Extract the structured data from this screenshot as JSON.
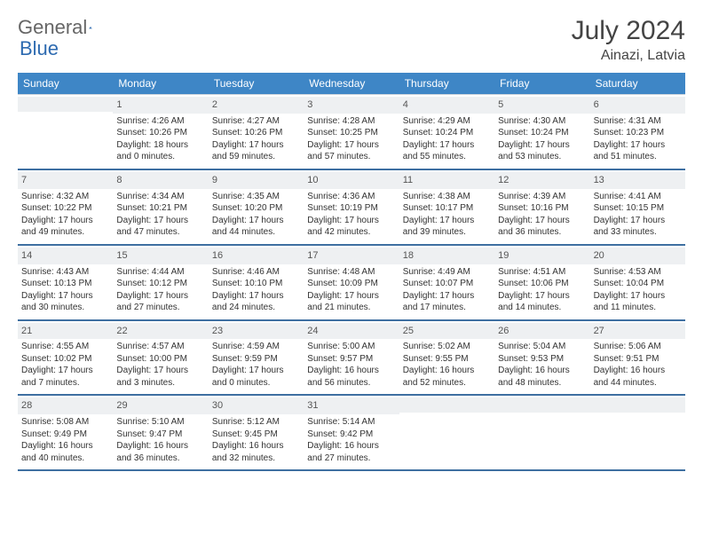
{
  "logo": {
    "text1": "General",
    "text2": "Blue"
  },
  "title": "July 2024",
  "location": "Ainazi, Latvia",
  "colors": {
    "header_bg": "#3e86c6",
    "header_text": "#ffffff",
    "week_border": "#3e6fa1",
    "daynum_bg": "#eef0f2",
    "logo_blue": "#2d6ab0"
  },
  "day_names": [
    "Sunday",
    "Monday",
    "Tuesday",
    "Wednesday",
    "Thursday",
    "Friday",
    "Saturday"
  ],
  "weeks": [
    [
      {
        "num": "",
        "sunrise": "",
        "sunset": "",
        "daylight": ""
      },
      {
        "num": "1",
        "sunrise": "Sunrise: 4:26 AM",
        "sunset": "Sunset: 10:26 PM",
        "daylight": "Daylight: 18 hours and 0 minutes."
      },
      {
        "num": "2",
        "sunrise": "Sunrise: 4:27 AM",
        "sunset": "Sunset: 10:26 PM",
        "daylight": "Daylight: 17 hours and 59 minutes."
      },
      {
        "num": "3",
        "sunrise": "Sunrise: 4:28 AM",
        "sunset": "Sunset: 10:25 PM",
        "daylight": "Daylight: 17 hours and 57 minutes."
      },
      {
        "num": "4",
        "sunrise": "Sunrise: 4:29 AM",
        "sunset": "Sunset: 10:24 PM",
        "daylight": "Daylight: 17 hours and 55 minutes."
      },
      {
        "num": "5",
        "sunrise": "Sunrise: 4:30 AM",
        "sunset": "Sunset: 10:24 PM",
        "daylight": "Daylight: 17 hours and 53 minutes."
      },
      {
        "num": "6",
        "sunrise": "Sunrise: 4:31 AM",
        "sunset": "Sunset: 10:23 PM",
        "daylight": "Daylight: 17 hours and 51 minutes."
      }
    ],
    [
      {
        "num": "7",
        "sunrise": "Sunrise: 4:32 AM",
        "sunset": "Sunset: 10:22 PM",
        "daylight": "Daylight: 17 hours and 49 minutes."
      },
      {
        "num": "8",
        "sunrise": "Sunrise: 4:34 AM",
        "sunset": "Sunset: 10:21 PM",
        "daylight": "Daylight: 17 hours and 47 minutes."
      },
      {
        "num": "9",
        "sunrise": "Sunrise: 4:35 AM",
        "sunset": "Sunset: 10:20 PM",
        "daylight": "Daylight: 17 hours and 44 minutes."
      },
      {
        "num": "10",
        "sunrise": "Sunrise: 4:36 AM",
        "sunset": "Sunset: 10:19 PM",
        "daylight": "Daylight: 17 hours and 42 minutes."
      },
      {
        "num": "11",
        "sunrise": "Sunrise: 4:38 AM",
        "sunset": "Sunset: 10:17 PM",
        "daylight": "Daylight: 17 hours and 39 minutes."
      },
      {
        "num": "12",
        "sunrise": "Sunrise: 4:39 AM",
        "sunset": "Sunset: 10:16 PM",
        "daylight": "Daylight: 17 hours and 36 minutes."
      },
      {
        "num": "13",
        "sunrise": "Sunrise: 4:41 AM",
        "sunset": "Sunset: 10:15 PM",
        "daylight": "Daylight: 17 hours and 33 minutes."
      }
    ],
    [
      {
        "num": "14",
        "sunrise": "Sunrise: 4:43 AM",
        "sunset": "Sunset: 10:13 PM",
        "daylight": "Daylight: 17 hours and 30 minutes."
      },
      {
        "num": "15",
        "sunrise": "Sunrise: 4:44 AM",
        "sunset": "Sunset: 10:12 PM",
        "daylight": "Daylight: 17 hours and 27 minutes."
      },
      {
        "num": "16",
        "sunrise": "Sunrise: 4:46 AM",
        "sunset": "Sunset: 10:10 PM",
        "daylight": "Daylight: 17 hours and 24 minutes."
      },
      {
        "num": "17",
        "sunrise": "Sunrise: 4:48 AM",
        "sunset": "Sunset: 10:09 PM",
        "daylight": "Daylight: 17 hours and 21 minutes."
      },
      {
        "num": "18",
        "sunrise": "Sunrise: 4:49 AM",
        "sunset": "Sunset: 10:07 PM",
        "daylight": "Daylight: 17 hours and 17 minutes."
      },
      {
        "num": "19",
        "sunrise": "Sunrise: 4:51 AM",
        "sunset": "Sunset: 10:06 PM",
        "daylight": "Daylight: 17 hours and 14 minutes."
      },
      {
        "num": "20",
        "sunrise": "Sunrise: 4:53 AM",
        "sunset": "Sunset: 10:04 PM",
        "daylight": "Daylight: 17 hours and 11 minutes."
      }
    ],
    [
      {
        "num": "21",
        "sunrise": "Sunrise: 4:55 AM",
        "sunset": "Sunset: 10:02 PM",
        "daylight": "Daylight: 17 hours and 7 minutes."
      },
      {
        "num": "22",
        "sunrise": "Sunrise: 4:57 AM",
        "sunset": "Sunset: 10:00 PM",
        "daylight": "Daylight: 17 hours and 3 minutes."
      },
      {
        "num": "23",
        "sunrise": "Sunrise: 4:59 AM",
        "sunset": "Sunset: 9:59 PM",
        "daylight": "Daylight: 17 hours and 0 minutes."
      },
      {
        "num": "24",
        "sunrise": "Sunrise: 5:00 AM",
        "sunset": "Sunset: 9:57 PM",
        "daylight": "Daylight: 16 hours and 56 minutes."
      },
      {
        "num": "25",
        "sunrise": "Sunrise: 5:02 AM",
        "sunset": "Sunset: 9:55 PM",
        "daylight": "Daylight: 16 hours and 52 minutes."
      },
      {
        "num": "26",
        "sunrise": "Sunrise: 5:04 AM",
        "sunset": "Sunset: 9:53 PM",
        "daylight": "Daylight: 16 hours and 48 minutes."
      },
      {
        "num": "27",
        "sunrise": "Sunrise: 5:06 AM",
        "sunset": "Sunset: 9:51 PM",
        "daylight": "Daylight: 16 hours and 44 minutes."
      }
    ],
    [
      {
        "num": "28",
        "sunrise": "Sunrise: 5:08 AM",
        "sunset": "Sunset: 9:49 PM",
        "daylight": "Daylight: 16 hours and 40 minutes."
      },
      {
        "num": "29",
        "sunrise": "Sunrise: 5:10 AM",
        "sunset": "Sunset: 9:47 PM",
        "daylight": "Daylight: 16 hours and 36 minutes."
      },
      {
        "num": "30",
        "sunrise": "Sunrise: 5:12 AM",
        "sunset": "Sunset: 9:45 PM",
        "daylight": "Daylight: 16 hours and 32 minutes."
      },
      {
        "num": "31",
        "sunrise": "Sunrise: 5:14 AM",
        "sunset": "Sunset: 9:42 PM",
        "daylight": "Daylight: 16 hours and 27 minutes."
      },
      {
        "num": "",
        "sunrise": "",
        "sunset": "",
        "daylight": ""
      },
      {
        "num": "",
        "sunrise": "",
        "sunset": "",
        "daylight": ""
      },
      {
        "num": "",
        "sunrise": "",
        "sunset": "",
        "daylight": ""
      }
    ]
  ]
}
